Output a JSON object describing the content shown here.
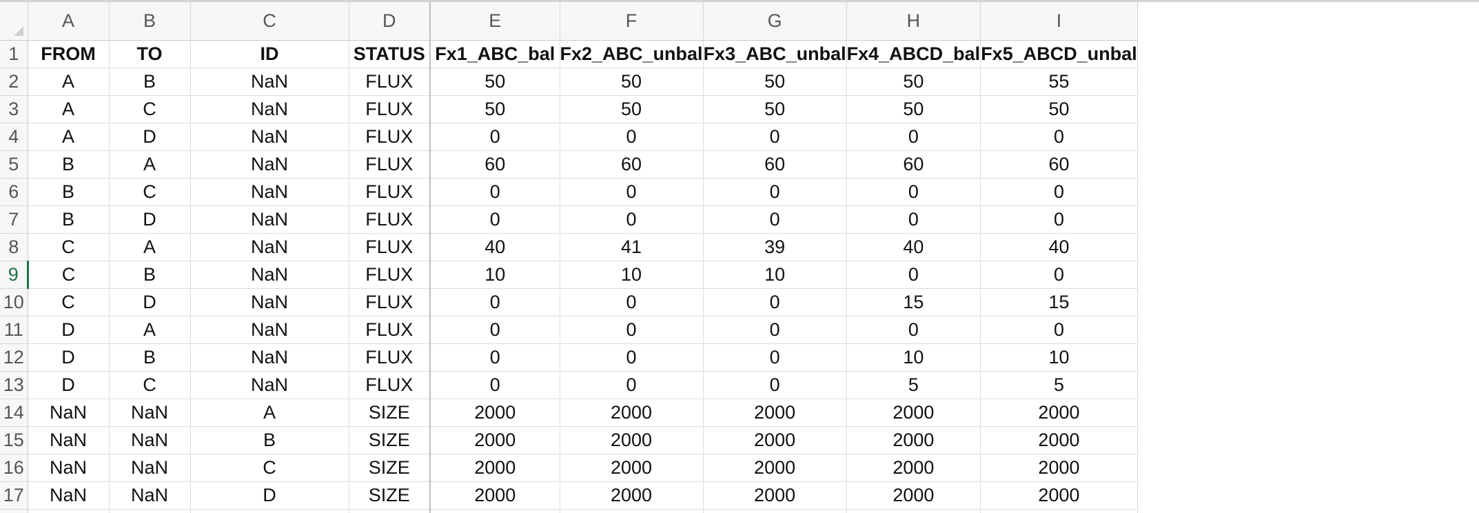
{
  "sheet": {
    "columns": [
      "A",
      "B",
      "C",
      "D",
      "E",
      "F",
      "G",
      "H",
      "I"
    ],
    "row_numbers": [
      "1",
      "2",
      "3",
      "4",
      "5",
      "6",
      "7",
      "8",
      "9",
      "10",
      "11",
      "12",
      "13",
      "14",
      "15",
      "16",
      "17"
    ],
    "active_row_number": "9",
    "header": [
      "FROM",
      "TO",
      "ID",
      "STATUS",
      "Fx1_ABC_bal",
      "Fx2_ABC_unbal",
      "Fx3_ABC_unbal",
      "Fx4_ABCD_bal",
      "Fx5_ABCD_unbal"
    ],
    "rows": [
      [
        "A",
        "B",
        "NaN",
        "FLUX",
        "50",
        "50",
        "50",
        "50",
        "55"
      ],
      [
        "A",
        "C",
        "NaN",
        "FLUX",
        "50",
        "50",
        "50",
        "50",
        "50"
      ],
      [
        "A",
        "D",
        "NaN",
        "FLUX",
        "0",
        "0",
        "0",
        "0",
        "0"
      ],
      [
        "B",
        "A",
        "NaN",
        "FLUX",
        "60",
        "60",
        "60",
        "60",
        "60"
      ],
      [
        "B",
        "C",
        "NaN",
        "FLUX",
        "0",
        "0",
        "0",
        "0",
        "0"
      ],
      [
        "B",
        "D",
        "NaN",
        "FLUX",
        "0",
        "0",
        "0",
        "0",
        "0"
      ],
      [
        "C",
        "A",
        "NaN",
        "FLUX",
        "40",
        "41",
        "39",
        "40",
        "40"
      ],
      [
        "C",
        "B",
        "NaN",
        "FLUX",
        "10",
        "10",
        "10",
        "0",
        "0"
      ],
      [
        "C",
        "D",
        "NaN",
        "FLUX",
        "0",
        "0",
        "0",
        "15",
        "15"
      ],
      [
        "D",
        "A",
        "NaN",
        "FLUX",
        "0",
        "0",
        "0",
        "0",
        "0"
      ],
      [
        "D",
        "B",
        "NaN",
        "FLUX",
        "0",
        "0",
        "0",
        "10",
        "10"
      ],
      [
        "D",
        "C",
        "NaN",
        "FLUX",
        "0",
        "0",
        "0",
        "5",
        "5"
      ],
      [
        "NaN",
        "NaN",
        "A",
        "SIZE",
        "2000",
        "2000",
        "2000",
        "2000",
        "2000"
      ],
      [
        "NaN",
        "NaN",
        "B",
        "SIZE",
        "2000",
        "2000",
        "2000",
        "2000",
        "2000"
      ],
      [
        "NaN",
        "NaN",
        "C",
        "SIZE",
        "2000",
        "2000",
        "2000",
        "2000",
        "2000"
      ],
      [
        "NaN",
        "NaN",
        "D",
        "SIZE",
        "2000",
        "2000",
        "2000",
        "2000",
        "2000"
      ]
    ],
    "colors": {
      "active_row_accent": "#1e7145",
      "header_background": "#f7f7f7",
      "gridline": "#dcdcdc"
    }
  }
}
